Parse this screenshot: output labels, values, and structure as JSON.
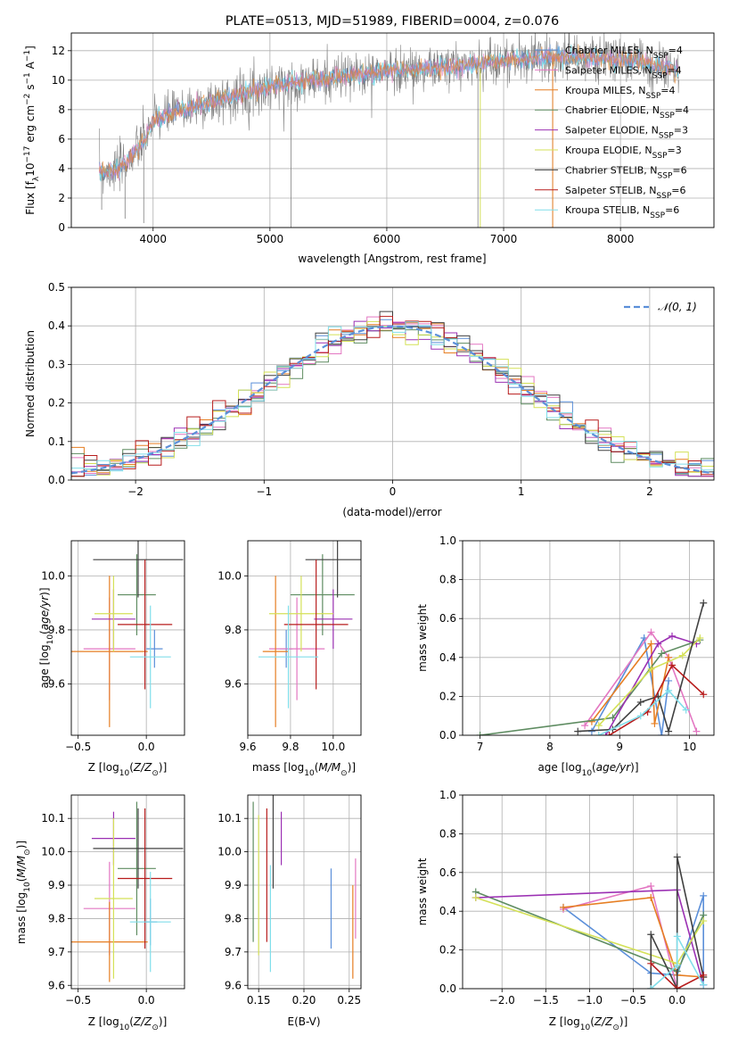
{
  "colors": {
    "grid": "#b0b0b0",
    "gauss": "#5b8fd9",
    "chabrier_miles": "#5b8fd9",
    "salpeter_miles": "#e377c2",
    "kroupa_miles": "#e67e22",
    "chabrier_elodie": "#5e8c61",
    "salpeter_elodie": "#9b30b3",
    "kroupa_elodie": "#d4e157",
    "chabrier_stelib": "#404040",
    "salpeter_stelib": "#b71c1c",
    "kroupa_stelib": "#80deea",
    "spectrum": "#808080"
  },
  "chart_data": [
    {
      "id": "spectrum",
      "type": "line",
      "title": "PLATE=0513, MJD=51989, FIBERID=0004, z=0.076",
      "xlabel": "wavelength [Angstrom, rest frame]",
      "ylabel": "Flux [f_λ10^-17 erg cm^-2 s^-1 A^-1]",
      "xlim": [
        3300,
        8800
      ],
      "ylim": [
        0,
        13.2
      ],
      "xticks": [
        "4000",
        "5000",
        "6000",
        "7000",
        "8000"
      ],
      "yticks": [
        "0",
        "2",
        "4",
        "6",
        "8",
        "10",
        "12"
      ],
      "data_range": [
        3540,
        8500
      ],
      "continuum": [
        [
          3540,
          3.8
        ],
        [
          3700,
          3.9
        ],
        [
          3900,
          5.6
        ],
        [
          4000,
          7.2
        ],
        [
          4200,
          7.9
        ],
        [
          4500,
          8.5
        ],
        [
          5000,
          9.6
        ],
        [
          5500,
          10.1
        ],
        [
          6000,
          10.6
        ],
        [
          6500,
          10.9
        ],
        [
          7000,
          11.3
        ],
        [
          7400,
          11.6
        ],
        [
          7800,
          11.5
        ],
        [
          8000,
          11.4
        ],
        [
          8200,
          11.2
        ],
        [
          8500,
          10.6
        ]
      ],
      "drops": [
        [
          3560,
          1.2
        ],
        [
          3760,
          0.6
        ],
        [
          3920,
          0.3
        ],
        [
          5180,
          0.0
        ],
        [
          6780,
          0.0
        ],
        [
          7420,
          0.0
        ]
      ],
      "legend": [
        {
          "label": "Chabrier MILES, N_SSP=4",
          "color_key": "chabrier_miles"
        },
        {
          "label": "Salpeter MILES, N_SSP=4",
          "color_key": "salpeter_miles"
        },
        {
          "label": "Kroupa MILES, N_SSP=4",
          "color_key": "kroupa_miles"
        },
        {
          "label": "Chabrier ELODIE, N_SSP=4",
          "color_key": "chabrier_elodie"
        },
        {
          "label": "Salpeter ELODIE, N_SSP=3",
          "color_key": "salpeter_elodie"
        },
        {
          "label": "Kroupa ELODIE, N_SSP=3",
          "color_key": "kroupa_elodie"
        },
        {
          "label": "Chabrier STELIB, N_SSP=6",
          "color_key": "chabrier_stelib"
        },
        {
          "label": "Salpeter STELIB, N_SSP=6",
          "color_key": "salpeter_stelib"
        },
        {
          "label": "Kroupa STELIB, N_SSP=6",
          "color_key": "kroupa_stelib"
        }
      ],
      "legend_placement": "upper-right"
    },
    {
      "id": "residuals",
      "type": "step",
      "xlabel": "(data-model)/error",
      "ylabel": "Normed distribution",
      "xlim": [
        -2.5,
        2.5
      ],
      "ylim": [
        0,
        0.5
      ],
      "xticks": [
        "−2",
        "−1",
        "0",
        "1",
        "2"
      ],
      "yticks": [
        "0.0",
        "0.1",
        "0.2",
        "0.3",
        "0.4",
        "0.5"
      ],
      "bin_width": 0.1,
      "legend": [
        {
          "label": "𝒩(0, 1)",
          "color_key": "gauss"
        }
      ],
      "legend_placement": "upper-right"
    },
    {
      "id": "age_vs_Z",
      "type": "errorbar",
      "xlabel": "Z [log10(Z/Z⊙)]",
      "ylabel": "age  [log10(age/yr)]",
      "xlim": [
        -0.55,
        0.28
      ],
      "ylim": [
        9.41,
        10.13
      ],
      "xticks": [
        "−0.5",
        "0.0"
      ],
      "yticks": [
        "9.6",
        "9.8",
        "10.0"
      ],
      "points": [
        {
          "c": "chabrier_miles",
          "x": 0.06,
          "y": 9.73,
          "xe": 0.06,
          "ye": 0.07
        },
        {
          "c": "salpeter_miles",
          "x": -0.27,
          "y": 9.73,
          "xe": 0.19,
          "ye": 0.19
        },
        {
          "c": "kroupa_miles",
          "x": -0.27,
          "y": 9.72,
          "xe": 0.28,
          "ye": 0.28
        },
        {
          "c": "chabrier_elodie",
          "x": -0.07,
          "y": 9.93,
          "xe": 0.14,
          "ye": 0.15
        },
        {
          "c": "salpeter_elodie",
          "x": -0.24,
          "y": 9.84,
          "xe": 0.16,
          "ye": 0.11
        },
        {
          "c": "kroupa_elodie",
          "x": -0.24,
          "y": 9.86,
          "xe": 0.14,
          "ye": 0.14
        },
        {
          "c": "chabrier_stelib",
          "x": -0.06,
          "y": 10.06,
          "xe": 0.33,
          "ye": 0.14
        },
        {
          "c": "salpeter_stelib",
          "x": -0.01,
          "y": 9.82,
          "xe": 0.2,
          "ye": 0.24
        },
        {
          "c": "kroupa_stelib",
          "x": 0.03,
          "y": 9.7,
          "xe": 0.15,
          "ye": 0.19
        }
      ]
    },
    {
      "id": "age_vs_mass",
      "type": "errorbar",
      "xlabel": "mass [log10(M/M⊙)]",
      "ylabel": "",
      "xlim": [
        9.6,
        10.13
      ],
      "ylim": [
        9.41,
        10.13
      ],
      "xticks": [
        "9.6",
        "9.8",
        "10.0"
      ],
      "yticks": [
        "9.6",
        "9.8",
        "10.0"
      ],
      "points": [
        {
          "c": "chabrier_miles",
          "x": 9.78,
          "y": 9.73,
          "xe": 0.03,
          "ye": 0.07
        },
        {
          "c": "salpeter_miles",
          "x": 9.83,
          "y": 9.73,
          "xe": 0.13,
          "ye": 0.19
        },
        {
          "c": "kroupa_miles",
          "x": 9.73,
          "y": 9.72,
          "xe": 0.06,
          "ye": 0.28
        },
        {
          "c": "chabrier_elodie",
          "x": 9.95,
          "y": 9.93,
          "xe": 0.15,
          "ye": 0.15
        },
        {
          "c": "salpeter_elodie",
          "x": 10.0,
          "y": 9.84,
          "xe": 0.09,
          "ye": 0.11
        },
        {
          "c": "kroupa_elodie",
          "x": 9.85,
          "y": 9.86,
          "xe": 0.15,
          "ye": 0.14
        },
        {
          "c": "chabrier_stelib",
          "x": 10.02,
          "y": 10.06,
          "xe": 0.15,
          "ye": 0.14
        },
        {
          "c": "salpeter_stelib",
          "x": 9.92,
          "y": 9.82,
          "xe": 0.15,
          "ye": 0.24
        },
        {
          "c": "kroupa_stelib",
          "x": 9.79,
          "y": 9.7,
          "xe": 0.14,
          "ye": 0.19
        }
      ]
    },
    {
      "id": "weight_vs_age",
      "type": "line",
      "xlabel": "age  [log10(age/yr)]",
      "ylabel": "mass weight",
      "xlim": [
        6.75,
        10.35
      ],
      "ylim": [
        0,
        1.0
      ],
      "xticks": [
        "7",
        "8",
        "9",
        "10"
      ],
      "yticks": [
        "0.0",
        "0.2",
        "0.4",
        "0.6",
        "0.8",
        "1.0"
      ],
      "series": [
        {
          "c": "chabrier_miles",
          "pts": [
            [
              8.6,
              0.02
            ],
            [
              9.35,
              0.5
            ],
            [
              9.6,
              0.0
            ],
            [
              9.7,
              0.28
            ]
          ]
        },
        {
          "c": "salpeter_miles",
          "pts": [
            [
              8.5,
              0.05
            ],
            [
              9.45,
              0.53
            ],
            [
              9.7,
              0.4
            ],
            [
              10.1,
              0.02
            ]
          ]
        },
        {
          "c": "kroupa_miles",
          "pts": [
            [
              8.6,
              0.07
            ],
            [
              9.45,
              0.47
            ],
            [
              9.5,
              0.06
            ],
            [
              9.7,
              0.4
            ]
          ]
        },
        {
          "c": "chabrier_elodie",
          "pts": [
            [
              7.0,
              0.0
            ],
            [
              8.9,
              0.09
            ],
            [
              9.6,
              0.42
            ],
            [
              10.15,
              0.49
            ]
          ]
        },
        {
          "c": "salpeter_elodie",
          "pts": [
            [
              8.8,
              0.0
            ],
            [
              9.55,
              0.47
            ],
            [
              9.75,
              0.51
            ],
            [
              10.1,
              0.47
            ]
          ]
        },
        {
          "c": "kroupa_elodie",
          "pts": [
            [
              8.7,
              0.05
            ],
            [
              9.45,
              0.34
            ],
            [
              9.9,
              0.41
            ],
            [
              10.15,
              0.5
            ]
          ]
        },
        {
          "c": "chabrier_stelib",
          "pts": [
            [
              8.4,
              0.02
            ],
            [
              8.9,
              0.03
            ],
            [
              9.3,
              0.17
            ],
            [
              9.55,
              0.2
            ],
            [
              9.7,
              0.02
            ],
            [
              10.2,
              0.68
            ]
          ]
        },
        {
          "c": "salpeter_stelib",
          "pts": [
            [
              8.85,
              0.0
            ],
            [
              9.4,
              0.12
            ],
            [
              9.75,
              0.36
            ],
            [
              10.2,
              0.21
            ]
          ]
        },
        {
          "c": "kroupa_stelib",
          "pts": [
            [
              8.7,
              0.0
            ],
            [
              9.3,
              0.1
            ],
            [
              9.7,
              0.23
            ],
            [
              9.95,
              0.13
            ]
          ]
        }
      ]
    },
    {
      "id": "mass_vs_Z",
      "type": "errorbar",
      "xlabel": "Z [log10(Z/Z⊙)]",
      "ylabel": "mass [log10(M/M⊙)]",
      "xlim": [
        -0.55,
        0.28
      ],
      "ylim": [
        9.59,
        10.17
      ],
      "xticks": [
        "−0.5",
        "0.0"
      ],
      "yticks": [
        "9.6",
        "9.7",
        "9.8",
        "9.9",
        "10.0",
        "10.1"
      ],
      "points": [
        {
          "c": "chabrier_miles",
          "x": 0.03,
          "y": 9.79,
          "xe": 0.05,
          "ye": 0.07
        },
        {
          "c": "salpeter_miles",
          "x": -0.27,
          "y": 9.83,
          "xe": 0.19,
          "ye": 0.14
        },
        {
          "c": "kroupa_miles",
          "x": -0.27,
          "y": 9.73,
          "xe": 0.28,
          "ye": 0.12
        },
        {
          "c": "chabrier_elodie",
          "x": -0.07,
          "y": 9.95,
          "xe": 0.14,
          "ye": 0.2
        },
        {
          "c": "salpeter_elodie",
          "x": -0.24,
          "y": 10.04,
          "xe": 0.16,
          "ye": 0.08
        },
        {
          "c": "kroupa_elodie",
          "x": -0.24,
          "y": 9.86,
          "xe": 0.14,
          "ye": 0.24
        },
        {
          "c": "chabrier_stelib",
          "x": -0.06,
          "y": 10.01,
          "xe": 0.33,
          "ye": 0.12
        },
        {
          "c": "salpeter_stelib",
          "x": -0.01,
          "y": 9.92,
          "xe": 0.2,
          "ye": 0.21
        },
        {
          "c": "kroupa_stelib",
          "x": 0.03,
          "y": 9.79,
          "xe": 0.15,
          "ye": 0.15
        }
      ]
    },
    {
      "id": "mass_vs_ebv",
      "type": "errorbar",
      "xlabel": "E(B-V)",
      "ylabel": "",
      "xlim": [
        0.138,
        0.263
      ],
      "ylim": [
        9.59,
        10.17
      ],
      "xticks": [
        "0.15",
        "0.20",
        "0.25"
      ],
      "yticks": [
        "9.6",
        "9.7",
        "9.8",
        "9.9",
        "10.0",
        "10.1"
      ],
      "points": [
        {
          "c": "chabrier_miles",
          "x": 0.23,
          "y": 9.83,
          "xe": 0,
          "ye": 0.12
        },
        {
          "c": "salpeter_miles",
          "x": 0.257,
          "y": 9.86,
          "xe": 0,
          "ye": 0.12
        },
        {
          "c": "kroupa_miles",
          "x": 0.254,
          "y": 9.76,
          "xe": 0,
          "ye": 0.14
        },
        {
          "c": "chabrier_elodie",
          "x": 0.144,
          "y": 9.94,
          "xe": 0,
          "ye": 0.21
        },
        {
          "c": "salpeter_elodie",
          "x": 0.175,
          "y": 10.04,
          "xe": 0,
          "ye": 0.08
        },
        {
          "c": "kroupa_elodie",
          "x": 0.15,
          "y": 9.9,
          "xe": 0,
          "ye": 0.21
        },
        {
          "c": "chabrier_stelib",
          "x": 0.166,
          "y": 10.03,
          "xe": 0,
          "ye": 0.14
        },
        {
          "c": "salpeter_stelib",
          "x": 0.159,
          "y": 9.93,
          "xe": 0,
          "ye": 0.2
        },
        {
          "c": "kroupa_stelib",
          "x": 0.163,
          "y": 9.8,
          "xe": 0,
          "ye": 0.16
        }
      ]
    },
    {
      "id": "weight_vs_Z",
      "type": "line",
      "xlabel": "Z [log10(Z/Z⊙)]",
      "ylabel": "mass weight",
      "xlim": [
        -2.45,
        0.42
      ],
      "ylim": [
        0,
        1.0
      ],
      "xticks": [
        "−2.0",
        "−1.5",
        "−1.0",
        "−0.5",
        "0.0"
      ],
      "yticks": [
        "0.0",
        "0.2",
        "0.4",
        "0.6",
        "0.8",
        "1.0"
      ],
      "series": [
        {
          "c": "chabrier_miles",
          "pts": [
            [
              -1.3,
              0.42
            ],
            [
              -0.3,
              0.08
            ],
            [
              0.0,
              0.07
            ],
            [
              0.3,
              0.48
            ],
            [
              0.3,
              0.02
            ]
          ]
        },
        {
          "c": "salpeter_miles",
          "pts": [
            [
              -1.3,
              0.41
            ],
            [
              -0.3,
              0.53
            ],
            [
              0.0,
              0.0
            ]
          ]
        },
        {
          "c": "kroupa_miles",
          "pts": [
            [
              -1.3,
              0.42
            ],
            [
              -0.3,
              0.47
            ],
            [
              0.0,
              0.07
            ],
            [
              0.3,
              0.06
            ]
          ]
        },
        {
          "c": "chabrier_elodie",
          "pts": [
            [
              -2.3,
              0.5
            ],
            [
              0.0,
              0.09
            ],
            [
              0.3,
              0.38
            ]
          ]
        },
        {
          "c": "salpeter_elodie",
          "pts": [
            [
              -2.3,
              0.47
            ],
            [
              0.0,
              0.51
            ],
            [
              0.3,
              0.02
            ]
          ]
        },
        {
          "c": "kroupa_elodie",
          "pts": [
            [
              -2.3,
              0.47
            ],
            [
              0.0,
              0.13
            ],
            [
              0.3,
              0.35
            ]
          ]
        },
        {
          "c": "chabrier_stelib",
          "pts": [
            [
              -0.3,
              0.0
            ],
            [
              -0.3,
              0.28
            ],
            [
              0.0,
              0.0
            ],
            [
              0.0,
              0.68
            ],
            [
              0.3,
              0.06
            ]
          ]
        },
        {
          "c": "salpeter_stelib",
          "pts": [
            [
              -0.3,
              0.13
            ],
            [
              0.0,
              0.0
            ],
            [
              0.3,
              0.07
            ]
          ]
        },
        {
          "c": "kroupa_stelib",
          "pts": [
            [
              -0.3,
              0.0
            ],
            [
              0.0,
              0.12
            ],
            [
              0.0,
              0.27
            ],
            [
              0.3,
              0.02
            ]
          ]
        }
      ]
    }
  ]
}
